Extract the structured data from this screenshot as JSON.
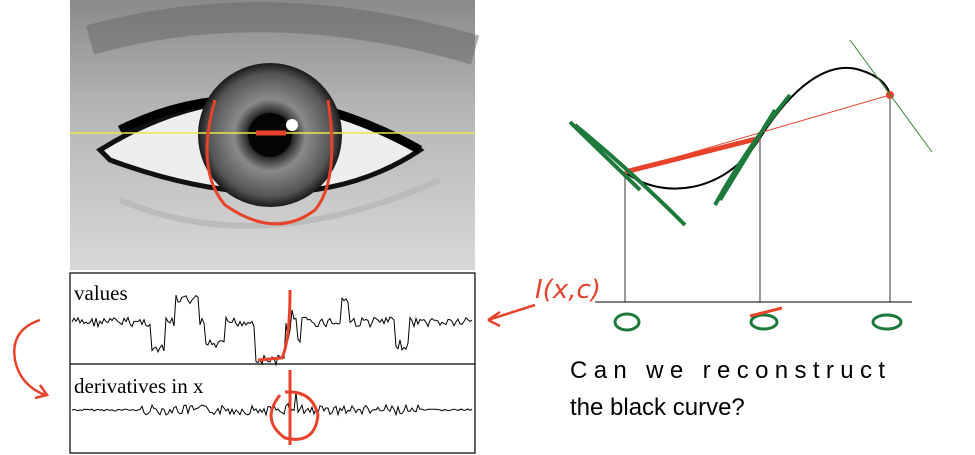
{
  "eye_figure": {
    "panels": [
      {
        "label": "values"
      },
      {
        "label": "derivatives in x"
      }
    ]
  },
  "annotation": "I(x,c)",
  "caption_lines": [
    "Can we reconstruct",
    "the black curve?"
  ]
}
